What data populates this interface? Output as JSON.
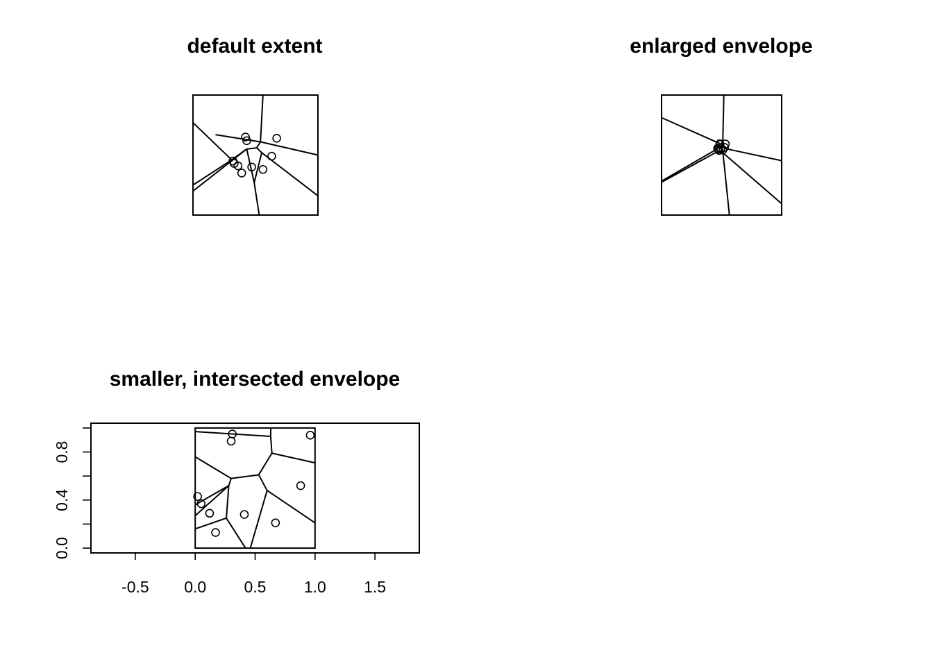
{
  "chart_data": [
    {
      "type": "scatter",
      "panel": "default",
      "title": "default extent",
      "axes_drawn": false,
      "xlim": [
        0,
        1
      ],
      "ylim": [
        0,
        1
      ],
      "frame": [
        0,
        1,
        0,
        1
      ],
      "points": {
        "x": [
          0.42,
          0.43,
          0.67,
          0.32,
          0.33,
          0.36,
          0.39,
          0.47,
          0.56,
          0.63
        ],
        "y": [
          0.65,
          0.62,
          0.64,
          0.45,
          0.43,
          0.41,
          0.35,
          0.4,
          0.38,
          0.49
        ]
      },
      "segments": [
        [
          [
            0.56,
            1.0
          ],
          [
            0.54,
            0.61
          ]
        ],
        [
          [
            0.18,
            0.67
          ],
          [
            0.54,
            0.61
          ]
        ],
        [
          [
            0.54,
            0.61
          ],
          [
            0.51,
            0.56
          ]
        ],
        [
          [
            0.51,
            0.56
          ],
          [
            0.43,
            0.55
          ]
        ],
        [
          [
            0.43,
            0.55
          ],
          [
            0.31,
            0.46
          ]
        ],
        [
          [
            0.31,
            0.46
          ],
          [
            0.0,
            0.25
          ]
        ],
        [
          [
            0.0,
            0.77
          ],
          [
            0.31,
            0.46
          ]
        ],
        [
          [
            0.43,
            0.55
          ],
          [
            0.0,
            0.2
          ]
        ],
        [
          [
            0.51,
            0.56
          ],
          [
            0.55,
            0.52
          ]
        ],
        [
          [
            0.55,
            0.52
          ],
          [
            0.49,
            0.27
          ]
        ],
        [
          [
            0.49,
            0.27
          ],
          [
            0.53,
            0.0
          ]
        ],
        [
          [
            0.49,
            0.27
          ],
          [
            0.43,
            0.55
          ]
        ],
        [
          [
            0.55,
            0.52
          ],
          [
            1.0,
            0.16
          ]
        ],
        [
          [
            0.54,
            0.61
          ],
          [
            1.0,
            0.5
          ]
        ]
      ]
    },
    {
      "type": "scatter",
      "panel": "enlarged",
      "title": "enlarged envelope",
      "axes_drawn": false,
      "xlim": [
        -2.2,
        3.2
      ],
      "ylim": [
        -2.5,
        2.8
      ],
      "frame": [
        -2.2,
        3.2,
        -2.5,
        2.8
      ],
      "points": {
        "x": [
          0.42,
          0.43,
          0.67,
          0.32,
          0.33,
          0.36,
          0.39,
          0.47,
          0.56,
          0.63
        ],
        "y": [
          0.65,
          0.62,
          0.64,
          0.45,
          0.43,
          0.41,
          0.35,
          0.4,
          0.38,
          0.49
        ]
      },
      "segments": [
        [
          [
            0.6,
            2.8
          ],
          [
            0.55,
            0.6
          ]
        ],
        [
          [
            0.55,
            0.6
          ],
          [
            -2.2,
            1.8
          ]
        ],
        [
          [
            0.3,
            0.42
          ],
          [
            -2.2,
            -1.0
          ]
        ],
        [
          [
            0.4,
            0.35
          ],
          [
            -2.2,
            -1.05
          ]
        ],
        [
          [
            0.6,
            0.45
          ],
          [
            3.2,
            -0.1
          ]
        ],
        [
          [
            0.5,
            0.3
          ],
          [
            3.2,
            -2.0
          ]
        ],
        [
          [
            0.55,
            0.35
          ],
          [
            0.85,
            -2.5
          ]
        ]
      ]
    },
    {
      "type": "scatter",
      "panel": "intersected",
      "title": "smaller, intersected envelope",
      "axes_drawn": true,
      "xlim": [
        -0.87,
        1.87
      ],
      "ylim": [
        -0.04,
        1.04
      ],
      "xticks": [
        -0.5,
        0.0,
        0.5,
        1.0,
        1.5
      ],
      "xtick_labels": [
        "-0.5",
        "0.0",
        "0.5",
        "1.0",
        "1.5"
      ],
      "yticks": [
        0.0,
        0.2,
        0.4,
        0.6,
        0.8,
        1.0
      ],
      "ytick_labels": [
        "0.0",
        "",
        "0.4",
        "",
        "0.8",
        ""
      ],
      "frame": [
        0.0,
        1.0,
        0.0,
        1.0
      ],
      "points": {
        "x": [
          0.31,
          0.3,
          0.96,
          0.02,
          0.05,
          0.12,
          0.17,
          0.41,
          0.67,
          0.88
        ],
        "y": [
          0.95,
          0.89,
          0.94,
          0.43,
          0.37,
          0.29,
          0.13,
          0.28,
          0.21,
          0.52
        ]
      },
      "segments": [
        [
          [
            0.0,
            0.97
          ],
          [
            0.63,
            0.93
          ]
        ],
        [
          [
            0.63,
            0.93
          ],
          [
            0.63,
            1.0
          ]
        ],
        [
          [
            0.63,
            0.93
          ],
          [
            0.64,
            0.79
          ]
        ],
        [
          [
            0.64,
            0.79
          ],
          [
            1.0,
            0.71
          ]
        ],
        [
          [
            0.64,
            0.79
          ],
          [
            0.53,
            0.61
          ]
        ],
        [
          [
            0.53,
            0.61
          ],
          [
            0.3,
            0.58
          ]
        ],
        [
          [
            0.3,
            0.58
          ],
          [
            0.0,
            0.76
          ]
        ],
        [
          [
            0.3,
            0.58
          ],
          [
            0.28,
            0.52
          ]
        ],
        [
          [
            0.28,
            0.52
          ],
          [
            0.0,
            0.36
          ]
        ],
        [
          [
            0.28,
            0.52
          ],
          [
            0.0,
            0.27
          ]
        ],
        [
          [
            0.28,
            0.52
          ],
          [
            0.26,
            0.25
          ]
        ],
        [
          [
            0.26,
            0.25
          ],
          [
            0.0,
            0.16
          ]
        ],
        [
          [
            0.26,
            0.25
          ],
          [
            0.42,
            0.0
          ]
        ],
        [
          [
            0.53,
            0.61
          ],
          [
            0.6,
            0.48
          ]
        ],
        [
          [
            0.6,
            0.48
          ],
          [
            0.46,
            0.0
          ]
        ],
        [
          [
            0.6,
            0.48
          ],
          [
            1.0,
            0.21
          ]
        ]
      ]
    }
  ]
}
